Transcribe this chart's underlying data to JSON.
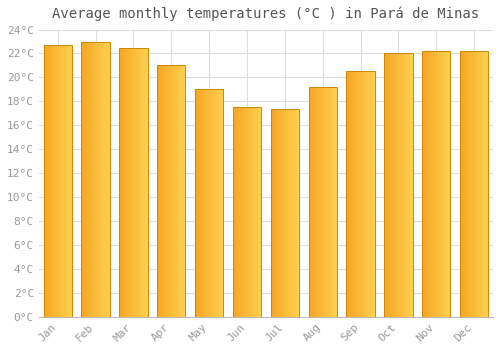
{
  "title": "Average monthly temperatures (°C ) in Pará de Minas",
  "months": [
    "Jan",
    "Feb",
    "Mar",
    "Apr",
    "May",
    "Jun",
    "Jul",
    "Aug",
    "Sep",
    "Oct",
    "Nov",
    "Dec"
  ],
  "values": [
    22.7,
    23.0,
    22.5,
    21.0,
    19.0,
    17.5,
    17.4,
    19.2,
    20.5,
    22.0,
    22.2,
    22.2
  ],
  "bar_color_left": "#F5A623",
  "bar_color_right": "#FFD966",
  "bar_color_mid": "#FFBB33",
  "background_color": "#FFFFFF",
  "grid_color": "#DDDDDD",
  "ylim": [
    0,
    24
  ],
  "ytick_step": 2,
  "title_fontsize": 10,
  "tick_fontsize": 8,
  "font_family": "monospace",
  "title_color": "#555555",
  "tick_color": "#999999"
}
